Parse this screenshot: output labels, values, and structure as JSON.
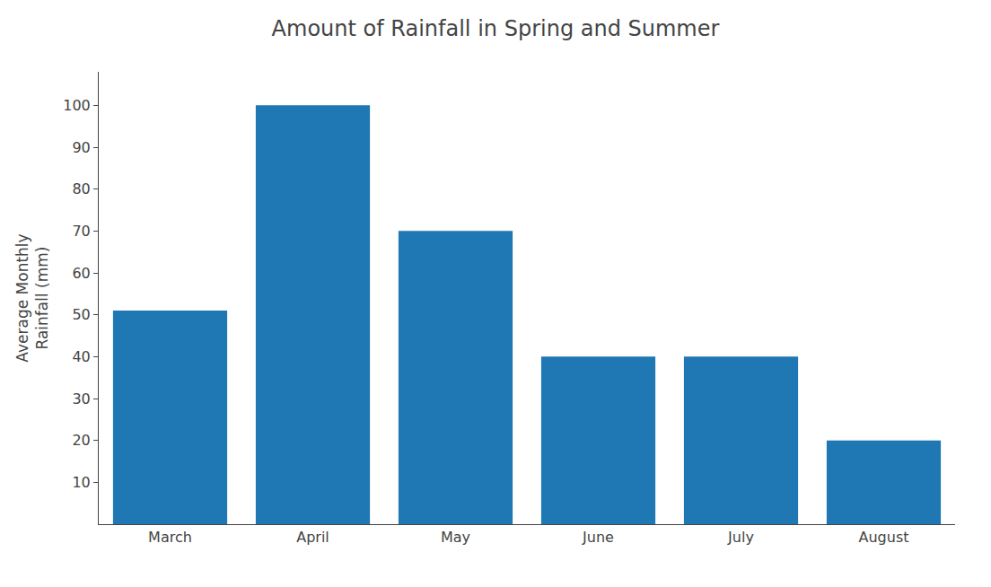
{
  "chart_data": {
    "type": "bar",
    "title": "Amount of Rainfall in Spring and Summer",
    "categories": [
      "March",
      "April",
      "May",
      "June",
      "July",
      "August"
    ],
    "values": [
      51,
      100,
      70,
      40,
      40,
      20
    ],
    "ylabel": "Average Monthly\nRainfall (mm)",
    "ylim": [
      0,
      108
    ],
    "yticks": [
      10,
      20,
      30,
      40,
      50,
      60,
      70,
      80,
      90,
      100
    ],
    "grid": false
  }
}
